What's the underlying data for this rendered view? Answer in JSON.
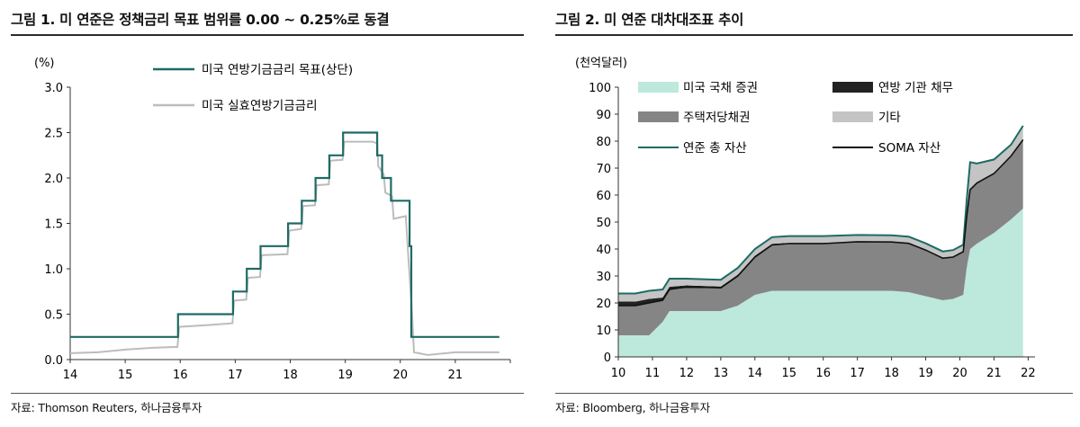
{
  "left": {
    "title": "그림 1. 미 연준은 정책금리 목표 범위를 0.00 ~ 0.25%로 동결",
    "source": "자료: Thomson Reuters, 하나금융투자",
    "chart_data": {
      "type": "line",
      "unit_label": "(%)",
      "ylim": [
        0.0,
        3.0
      ],
      "yticks": [
        "0.0",
        "0.5",
        "1.0",
        "1.5",
        "2.0",
        "2.5",
        "3.0"
      ],
      "xlim": [
        14,
        22
      ],
      "xticks": [
        "14",
        "15",
        "16",
        "17",
        "18",
        "19",
        "20",
        "21"
      ],
      "series": [
        {
          "name": "미국 연방기금금리 목표(상단)",
          "color": "#1e6b64",
          "points": [
            [
              14.0,
              0.25
            ],
            [
              15.96,
              0.25
            ],
            [
              15.96,
              0.5
            ],
            [
              16.96,
              0.5
            ],
            [
              16.96,
              0.75
            ],
            [
              17.21,
              0.75
            ],
            [
              17.21,
              1.0
            ],
            [
              17.46,
              1.0
            ],
            [
              17.46,
              1.25
            ],
            [
              17.96,
              1.25
            ],
            [
              17.96,
              1.5
            ],
            [
              18.21,
              1.5
            ],
            [
              18.21,
              1.75
            ],
            [
              18.46,
              1.75
            ],
            [
              18.46,
              2.0
            ],
            [
              18.71,
              2.0
            ],
            [
              18.71,
              2.25
            ],
            [
              18.96,
              2.25
            ],
            [
              18.96,
              2.5
            ],
            [
              19.58,
              2.5
            ],
            [
              19.58,
              2.25
            ],
            [
              19.67,
              2.25
            ],
            [
              19.67,
              2.0
            ],
            [
              19.83,
              2.0
            ],
            [
              19.83,
              1.75
            ],
            [
              20.17,
              1.75
            ],
            [
              20.17,
              1.25
            ],
            [
              20.2,
              1.25
            ],
            [
              20.2,
              0.25
            ],
            [
              21.8,
              0.25
            ]
          ]
        },
        {
          "name": "미국 실효연방기금금리",
          "color": "#bcbcbc",
          "points": [
            [
              14.0,
              0.07
            ],
            [
              14.5,
              0.08
            ],
            [
              15.0,
              0.11
            ],
            [
              15.5,
              0.13
            ],
            [
              15.95,
              0.14
            ],
            [
              15.98,
              0.36
            ],
            [
              16.5,
              0.38
            ],
            [
              16.95,
              0.4
            ],
            [
              16.98,
              0.65
            ],
            [
              17.2,
              0.66
            ],
            [
              17.23,
              0.9
            ],
            [
              17.45,
              0.91
            ],
            [
              17.48,
              1.15
            ],
            [
              17.95,
              1.16
            ],
            [
              17.98,
              1.42
            ],
            [
              18.2,
              1.44
            ],
            [
              18.23,
              1.69
            ],
            [
              18.45,
              1.7
            ],
            [
              18.48,
              1.92
            ],
            [
              18.7,
              1.93
            ],
            [
              18.73,
              2.19
            ],
            [
              18.95,
              2.2
            ],
            [
              18.98,
              2.4
            ],
            [
              19.5,
              2.4
            ],
            [
              19.58,
              2.38
            ],
            [
              19.6,
              2.13
            ],
            [
              19.7,
              2.04
            ],
            [
              19.73,
              1.84
            ],
            [
              19.85,
              1.8
            ],
            [
              19.88,
              1.55
            ],
            [
              20.1,
              1.58
            ],
            [
              20.15,
              1.1
            ],
            [
              20.2,
              0.65
            ],
            [
              20.25,
              0.08
            ],
            [
              20.5,
              0.05
            ],
            [
              21.0,
              0.08
            ],
            [
              21.5,
              0.08
            ],
            [
              21.8,
              0.08
            ]
          ]
        }
      ]
    }
  },
  "right": {
    "title": "그림 2. 미 연준 대차대조표 추이",
    "source": "자료: Bloomberg, 하나금융투자",
    "chart_data": {
      "type": "area",
      "unit_label": "(천억달러)",
      "ylim": [
        0,
        100
      ],
      "yticks": [
        "0",
        "10",
        "20",
        "30",
        "40",
        "50",
        "60",
        "70",
        "80",
        "90",
        "100"
      ],
      "xlim": [
        10,
        22.2
      ],
      "xticks": [
        "10",
        "11",
        "12",
        "13",
        "14",
        "15",
        "16",
        "17",
        "18",
        "19",
        "20",
        "21",
        "22"
      ],
      "x": [
        10.0,
        10.5,
        10.9,
        11.3,
        11.5,
        12.0,
        12.5,
        13.0,
        13.5,
        14.0,
        14.5,
        15.0,
        16.0,
        17.0,
        18.0,
        18.5,
        19.0,
        19.5,
        19.8,
        20.1,
        20.2,
        20.3,
        20.5,
        21.0,
        21.5,
        21.85
      ],
      "series": [
        {
          "name": "미국 국채 증권",
          "kind": "area",
          "color": "#bde8dc",
          "values": [
            8.0,
            8.0,
            8.0,
            13.0,
            17.0,
            17.0,
            17.0,
            17.0,
            19.0,
            23.0,
            24.5,
            24.5,
            24.5,
            24.5,
            24.5,
            24.0,
            22.5,
            21.0,
            21.5,
            23.0,
            33.0,
            40.0,
            42.0,
            46.0,
            51.0,
            55.0
          ]
        },
        {
          "name": "주택저당채권",
          "kind": "area",
          "color": "#858585",
          "values": [
            11.0,
            11.0,
            12.0,
            8.0,
            8.0,
            8.5,
            8.5,
            8.5,
            11.0,
            14.0,
            17.0,
            17.5,
            17.5,
            18.0,
            18.0,
            18.0,
            17.0,
            15.5,
            15.5,
            16.0,
            19.0,
            22.0,
            22.5,
            22.0,
            23.5,
            25.5
          ]
        },
        {
          "name": "연방 기관 채무",
          "kind": "area",
          "color": "#222222",
          "values": [
            1.5,
            1.5,
            1.5,
            1.0,
            1.0,
            1.0,
            0.8,
            0.6,
            0.5,
            0.5,
            0.4,
            0.3,
            0.3,
            0.2,
            0.1,
            0.1,
            0.1,
            0.1,
            0.1,
            0.1,
            0.2,
            0.2,
            0.2,
            0.2,
            0.2,
            0.2
          ]
        },
        {
          "name": "기타",
          "kind": "area",
          "color": "#c4c4c4",
          "values": [
            3.0,
            3.0,
            3.0,
            3.0,
            3.0,
            2.5,
            2.5,
            2.5,
            2.5,
            2.5,
            2.5,
            2.5,
            2.5,
            2.5,
            2.5,
            2.5,
            2.5,
            2.5,
            2.5,
            2.5,
            6.0,
            10.0,
            7.0,
            5.0,
            4.0,
            5.0
          ]
        },
        {
          "name": "연준 총 자산",
          "kind": "line",
          "color": "#1e6b64",
          "values": [
            23.5,
            23.5,
            24.5,
            25.0,
            29.0,
            29.0,
            28.8,
            28.6,
            33.0,
            40.0,
            44.4,
            44.8,
            44.8,
            45.2,
            45.1,
            44.6,
            42.1,
            39.1,
            39.6,
            41.6,
            58.2,
            72.2,
            71.7,
            73.2,
            78.7,
            85.7
          ]
        },
        {
          "name": "SOMA 자산",
          "kind": "line",
          "color": "#111111",
          "values": [
            19.0,
            19.0,
            20.0,
            21.0,
            25.0,
            26.0,
            25.8,
            25.6,
            30.0,
            37.0,
            41.5,
            42.0,
            42.0,
            42.7,
            42.6,
            42.1,
            39.6,
            36.6,
            37.0,
            39.0,
            52.0,
            62.0,
            64.5,
            68.0,
            74.5,
            80.5
          ]
        }
      ]
    }
  }
}
